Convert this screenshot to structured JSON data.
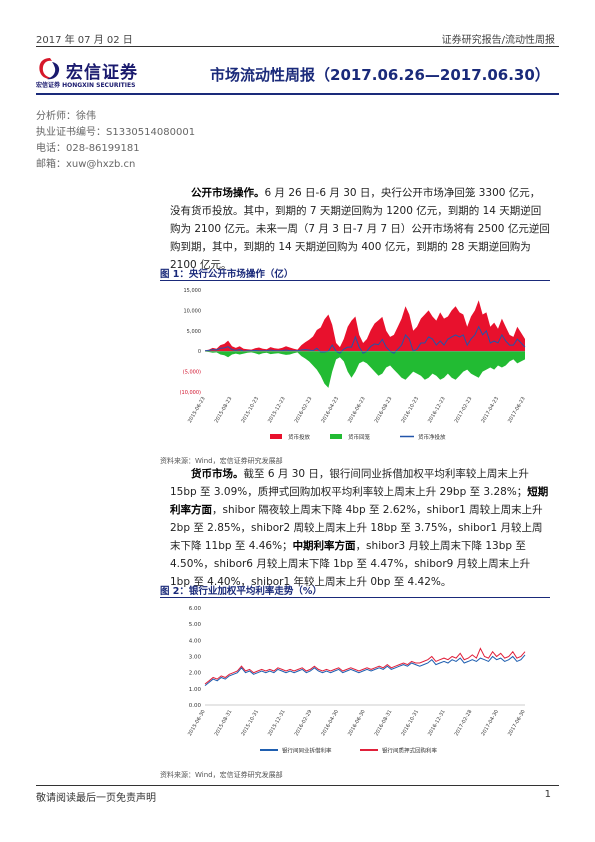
{
  "header": {
    "date": "2017 年 07 月 02 日",
    "category": "证券研究报告/流动性周报"
  },
  "logo": {
    "cn": "宏信证券",
    "en": "宏信证券 HONGXIN SECURITIES"
  },
  "report_title": "市场流动性周报（2017.06.26—2017.06.30）",
  "analyst": {
    "name": "分析师：徐伟",
    "cert": "执业证书编号：S1330514080001",
    "phone": "电话：028-86199181",
    "email": "邮箱：xuw@hxzb.cn"
  },
  "para1": {
    "lead": "公开市场操作。",
    "text": "6 月 26 日-6 月 30 日，央行公开市场净回笼 3300 亿元，没有货币投放。其中，到期的 7 天期逆回购为 1200 亿元，到期的 14 天期逆回购为 2100 亿元。未来一周（7 月 3 日-7 月 7 日）公开市场将有 2500 亿元逆回购到期，其中，到期的 14 天期逆回购为 400 亿元，到期的 28 天期逆回购为 2100 亿元。"
  },
  "figure1": {
    "title": "图 1：央行公开市场操作（亿）",
    "source": "资料来源：Wind，宏信证券研究发展部"
  },
  "para2": {
    "lead": "货币市场。",
    "text1": "截至 6 月 30 日，银行间同业拆借加权平均利率较上周末上升 15bp 至 3.09%，质押式回购加权平均利率较上周末上升 29bp 至 3.28%；",
    "lead2": "短期利率方面",
    "text2": "，shibor 隔夜较上周末下降 4bp 至 2.62%，shibor1 周较上周末上升 2bp 至 2.85%，shibor2 周较上周末上升 18bp 至 3.75%，shibor1 月较上周末下降 11bp 至 4.46%；",
    "lead3": "中期利率方面",
    "text3": "，shibor3 月较上周末下降 13bp 至 4.50%，shibor6 月较上周末下降 1bp 至 4.47%，shibor9 月较上周末上升 1bp 至 4.40%，shibor1 年较上周末上升 0bp 至 4.42%。"
  },
  "figure2": {
    "title": "图 2：银行业加权平均利率走势（%）",
    "source": "资料来源：Wind，宏信证券研究发展部"
  },
  "footer": {
    "disclaimer": "敬请阅读最后一页免责声明",
    "page": "1"
  },
  "chart_data": [
    {
      "type": "area",
      "yticks": [
        "15,000",
        "10,000",
        "5,000",
        "0",
        "(5,000)",
        "(10,000)"
      ],
      "ylim": [
        -10000,
        15000
      ],
      "categories": [
        "2015-06-23",
        "2015-08-23",
        "2015-10-23",
        "2015-12-23",
        "2016-02-23",
        "2016-04-23",
        "2016-06-23",
        "2016-08-23",
        "2016-10-23",
        "2016-12-23",
        "2017-02-23",
        "2017-04-23",
        "2017-06-23"
      ],
      "series": [
        {
          "name": "货币投放",
          "color": "#e8112d"
        },
        {
          "name": "货币回笼",
          "color": "#22bb33"
        },
        {
          "name": "货币净投放",
          "color": "#2255aa"
        }
      ],
      "values": {
        "inject": [
          200,
          400,
          800,
          600,
          1500,
          1800,
          2600,
          1200,
          800,
          1200,
          600,
          500,
          400,
          700,
          900,
          600,
          500,
          1000,
          700,
          600,
          800,
          1200,
          900,
          600,
          400,
          1500,
          2200,
          2800,
          3600,
          5200,
          5800,
          7800,
          9000,
          6500,
          2000,
          1000,
          3000,
          6000,
          7500,
          8500,
          4000,
          2000,
          3000,
          5200,
          6800,
          7600,
          8400,
          5000,
          3500,
          4000,
          6000,
          8000,
          11000,
          9000,
          5000,
          6000,
          8000,
          9000,
          10000,
          8500,
          7500,
          9500,
          8000,
          8500,
          10000,
          11000,
          9500,
          9000,
          6000,
          8500,
          10000,
          12500,
          9000,
          9500,
          6000,
          7000,
          5500,
          8000,
          6000,
          4000,
          3500,
          6000,
          4500,
          3000
        ],
        "withdraw": [
          -100,
          -200,
          -400,
          -300,
          -800,
          -1000,
          -1500,
          -800,
          -600,
          -800,
          -600,
          -400,
          -300,
          -500,
          -800,
          -500,
          -400,
          -700,
          -600,
          -500,
          -700,
          -900,
          -800,
          -500,
          -300,
          -1200,
          -1800,
          -2500,
          -3500,
          -4500,
          -6000,
          -8000,
          -9000,
          -5000,
          -2000,
          -1500,
          -2500,
          -5000,
          -6500,
          -5000,
          -3000,
          -2500,
          -3000,
          -4000,
          -5000,
          -6000,
          -5500,
          -4000,
          -3500,
          -4500,
          -5500,
          -6500,
          -7000,
          -6000,
          -5000,
          -5500,
          -6000,
          -7000,
          -6500,
          -5500,
          -6000,
          -7000,
          -6500,
          -5500,
          -6500,
          -7000,
          -6000,
          -5000,
          -4500,
          -5500,
          -6000,
          -6500,
          -5000,
          -4500,
          -4000,
          -4500,
          -3500,
          -4000,
          -3500,
          -2500,
          -2000,
          -3000,
          -2500,
          -2000
        ],
        "net": [
          100,
          200,
          400,
          300,
          700,
          800,
          1100,
          400,
          200,
          400,
          0,
          100,
          100,
          200,
          100,
          100,
          100,
          300,
          100,
          100,
          100,
          300,
          100,
          100,
          100,
          300,
          400,
          300,
          100,
          700,
          -200,
          -200,
          0,
          1500,
          0,
          -500,
          500,
          1000,
          1000,
          3500,
          1000,
          -500,
          0,
          1200,
          1800,
          1600,
          2900,
          1000,
          0,
          -500,
          500,
          1500,
          4000,
          3000,
          0,
          500,
          2000,
          2000,
          3500,
          3000,
          1500,
          2500,
          1500,
          3000,
          3500,
          4000,
          3500,
          4000,
          1500,
          3000,
          4000,
          6000,
          4000,
          5000,
          2000,
          2500,
          2000,
          4000,
          2500,
          1500,
          1500,
          3000,
          2000,
          1000
        ]
      }
    },
    {
      "type": "line",
      "yticks": [
        "6.00",
        "5.00",
        "4.00",
        "3.00",
        "2.00",
        "1.00",
        "0.00"
      ],
      "ylim": [
        0,
        6
      ],
      "categories": [
        "2015-06-30",
        "2015-08-31",
        "2015-10-31",
        "2015-12-31",
        "2016-02-29",
        "2016-04-30",
        "2016-06-30",
        "2016-08-31",
        "2016-10-31",
        "2016-12-31",
        "2017-02-28",
        "2017-04-30",
        "2017-06-30"
      ],
      "series": [
        {
          "name": "银行间同业拆借利率",
          "color": "#1f5fb0"
        },
        {
          "name": "银行间质押式回购利率",
          "color": "#e0203a"
        }
      ],
      "values": {
        "interbank": [
          1.2,
          1.4,
          1.6,
          1.5,
          1.7,
          1.6,
          1.8,
          1.9,
          2.0,
          2.3,
          2.0,
          2.1,
          1.9,
          2.0,
          2.1,
          2.0,
          2.1,
          2.0,
          2.2,
          2.1,
          2.0,
          2.1,
          2.0,
          2.1,
          2.2,
          2.0,
          2.1,
          2.3,
          2.1,
          2.0,
          2.1,
          2.0,
          2.1,
          2.2,
          2.0,
          2.1,
          2.2,
          2.1,
          2.0,
          2.1,
          2.2,
          2.1,
          2.2,
          2.3,
          2.2,
          2.4,
          2.2,
          2.3,
          2.4,
          2.5,
          2.4,
          2.6,
          2.5,
          2.4,
          2.5,
          2.6,
          2.8,
          2.5,
          2.6,
          2.7,
          2.6,
          2.8,
          2.7,
          2.9,
          2.6,
          2.7,
          2.8,
          2.7,
          2.9,
          2.8,
          2.7,
          3.0,
          2.8,
          2.9,
          2.7,
          2.8,
          3.0,
          2.7,
          2.8,
          3.1
        ],
        "repo": [
          1.3,
          1.5,
          1.7,
          1.6,
          1.8,
          1.7,
          1.9,
          2.0,
          2.1,
          2.4,
          2.1,
          2.2,
          2.0,
          2.1,
          2.2,
          2.1,
          2.2,
          2.1,
          2.3,
          2.2,
          2.1,
          2.2,
          2.1,
          2.2,
          2.3,
          2.1,
          2.2,
          2.4,
          2.2,
          2.1,
          2.2,
          2.1,
          2.2,
          2.3,
          2.1,
          2.2,
          2.3,
          2.2,
          2.1,
          2.2,
          2.3,
          2.2,
          2.3,
          2.4,
          2.3,
          2.5,
          2.3,
          2.4,
          2.5,
          2.6,
          2.5,
          2.7,
          2.6,
          2.6,
          2.7,
          2.8,
          3.0,
          2.7,
          2.8,
          2.9,
          2.8,
          3.0,
          2.9,
          3.2,
          2.8,
          2.9,
          3.1,
          2.9,
          3.5,
          3.0,
          2.9,
          3.3,
          3.0,
          3.2,
          2.9,
          3.0,
          3.3,
          2.9,
          3.0,
          3.3
        ]
      }
    }
  ]
}
